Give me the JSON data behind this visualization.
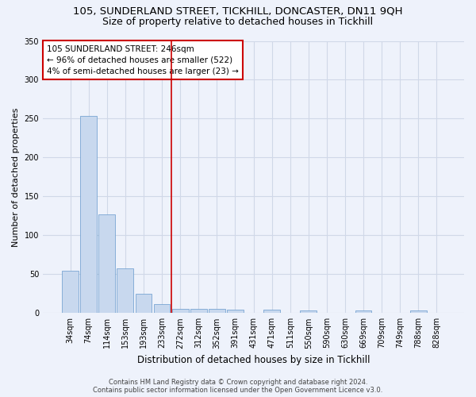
{
  "title": "105, SUNDERLAND STREET, TICKHILL, DONCASTER, DN11 9QH",
  "subtitle": "Size of property relative to detached houses in Tickhill",
  "xlabel": "Distribution of detached houses by size in Tickhill",
  "ylabel": "Number of detached properties",
  "bar_color": "#c8d8ee",
  "bar_edge_color": "#6699cc",
  "categories": [
    "34sqm",
    "74sqm",
    "114sqm",
    "153sqm",
    "193sqm",
    "233sqm",
    "272sqm",
    "312sqm",
    "352sqm",
    "391sqm",
    "431sqm",
    "471sqm",
    "511sqm",
    "550sqm",
    "590sqm",
    "630sqm",
    "669sqm",
    "709sqm",
    "749sqm",
    "788sqm",
    "828sqm"
  ],
  "values": [
    54,
    254,
    127,
    57,
    25,
    12,
    5,
    5,
    5,
    4,
    0,
    4,
    0,
    3,
    0,
    0,
    3,
    0,
    0,
    3,
    0
  ],
  "ylim": [
    0,
    350
  ],
  "yticks": [
    0,
    50,
    100,
    150,
    200,
    250,
    300,
    350
  ],
  "vline_x": 5.5,
  "vline_color": "#cc0000",
  "annotation_text": "105 SUNDERLAND STREET: 246sqm\n← 96% of detached houses are smaller (522)\n4% of semi-detached houses are larger (23) →",
  "annotation_box_facecolor": "#ffffff",
  "annotation_box_edge": "#cc0000",
  "footer": "Contains HM Land Registry data © Crown copyright and database right 2024.\nContains public sector information licensed under the Open Government Licence v3.0.",
  "background_color": "#eef2fb",
  "grid_color": "#d0d8e8",
  "title_fontsize": 9.5,
  "subtitle_fontsize": 9,
  "ylabel_fontsize": 8,
  "xlabel_fontsize": 8.5,
  "tick_fontsize": 7,
  "annot_fontsize": 7.5,
  "footer_fontsize": 6
}
